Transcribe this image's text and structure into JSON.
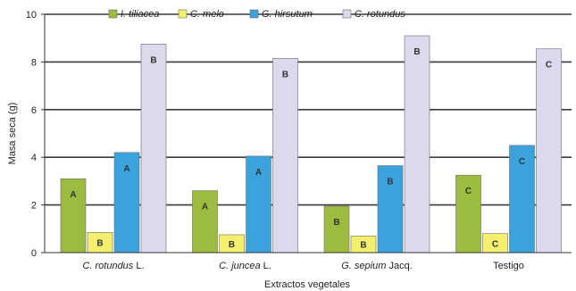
{
  "chart_data": {
    "type": "bar",
    "xlabel": "Extractos vegetales",
    "ylabel": "Masa seca (g)",
    "ylim": [
      0,
      10
    ],
    "yticks": [
      "0",
      "2",
      "4",
      "6",
      "8",
      "10"
    ],
    "grid": true,
    "legend_position": "top",
    "categories": [
      {
        "italic": "C. rotundus",
        "plain": " L."
      },
      {
        "italic": "C. juncea",
        "plain": " L."
      },
      {
        "italic": "G. sepium",
        "plain": " Jacq."
      },
      {
        "italic": "",
        "plain": "Testigo"
      }
    ],
    "series": [
      {
        "name": "I. tiliacea",
        "color": "#9dbb3e",
        "values": [
          3.1,
          2.6,
          1.95,
          3.25
        ],
        "labels": [
          "A",
          "A",
          "B",
          "C"
        ]
      },
      {
        "name": "C. melo",
        "color": "#f4f06e",
        "values": [
          0.85,
          0.75,
          0.7,
          0.8
        ],
        "labels": [
          "B",
          "B",
          "B",
          "C"
        ]
      },
      {
        "name": "G. hirsutum",
        "color": "#3ba3dc",
        "values": [
          4.2,
          4.05,
          3.65,
          4.5
        ],
        "labels": [
          "A",
          "A",
          "B",
          "C"
        ]
      },
      {
        "name": "C. rotundus",
        "color": "#dcd8ee",
        "values": [
          8.75,
          8.15,
          9.1,
          8.55
        ],
        "labels": [
          "B",
          "B",
          "B",
          "C"
        ]
      }
    ]
  }
}
